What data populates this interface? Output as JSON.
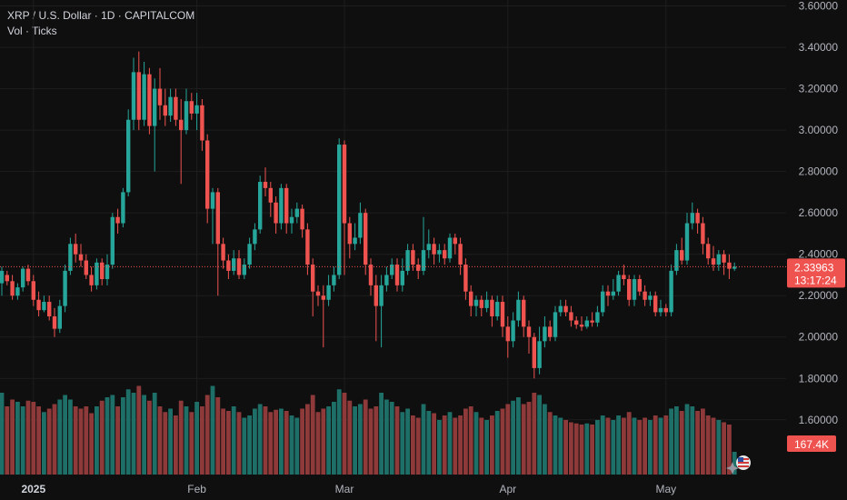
{
  "legend": {
    "title": "XRP / U.S. Dollar · 1D · CAPITALCOM",
    "sub": "Vol · Ticks"
  },
  "colors": {
    "up": "#26a69a",
    "down": "#ef5350",
    "vol_up": "#1f6f69",
    "vol_down": "#8f3a3a",
    "background": "#0f0f0f",
    "grid": "#1e1e1e",
    "price_line": "#ef5350"
  },
  "price_badge": {
    "price": "2.33963",
    "countdown": "13:17:24"
  },
  "volume_badge": "167.4K",
  "chart_data": {
    "type": "candlestick",
    "yticks": [
      "3.60000",
      "3.40000",
      "3.20000",
      "3.00000",
      "2.80000",
      "2.60000",
      "2.40000",
      "2.20000",
      "2.00000",
      "1.80000",
      "1.60000"
    ],
    "xticks": [
      {
        "label": "2025",
        "bar": 6,
        "bold": true
      },
      {
        "label": "Feb",
        "bar": 37,
        "bold": false
      },
      {
        "label": "Mar",
        "bar": 65,
        "bold": false
      },
      {
        "label": "Apr",
        "bar": 96,
        "bold": false
      },
      {
        "label": "May",
        "bar": 126,
        "bold": false
      }
    ],
    "ylim": [
      1.52,
      3.62
    ],
    "current_price": 2.33963,
    "candles": [
      [
        2.26,
        2.32,
        2.2,
        2.34,
        0.72
      ],
      [
        2.3,
        2.27,
        2.25,
        2.32,
        0.6
      ],
      [
        2.27,
        2.2,
        2.18,
        2.3,
        0.66
      ],
      [
        2.2,
        2.24,
        2.18,
        2.26,
        0.64
      ],
      [
        2.24,
        2.33,
        2.22,
        2.34,
        0.6
      ],
      [
        2.33,
        2.27,
        2.25,
        2.35,
        0.65
      ],
      [
        2.27,
        2.18,
        2.15,
        2.3,
        0.64
      ],
      [
        2.18,
        2.13,
        2.1,
        2.22,
        0.6
      ],
      [
        2.13,
        2.17,
        2.12,
        2.2,
        0.55
      ],
      [
        2.17,
        2.1,
        2.08,
        2.2,
        0.58
      ],
      [
        2.1,
        2.04,
        2.0,
        2.14,
        0.62
      ],
      [
        2.04,
        2.15,
        2.02,
        2.18,
        0.66
      ],
      [
        2.15,
        2.32,
        2.12,
        2.35,
        0.7
      ],
      [
        2.32,
        2.45,
        2.3,
        2.48,
        0.66
      ],
      [
        2.45,
        2.4,
        2.36,
        2.5,
        0.6
      ],
      [
        2.4,
        2.37,
        2.34,
        2.45,
        0.58
      ],
      [
        2.37,
        2.3,
        2.28,
        2.4,
        0.6
      ],
      [
        2.3,
        2.25,
        2.22,
        2.34,
        0.54
      ],
      [
        2.25,
        2.36,
        2.23,
        2.38,
        0.6
      ],
      [
        2.36,
        2.28,
        2.25,
        2.38,
        0.65
      ],
      [
        2.28,
        2.35,
        2.25,
        2.4,
        0.68
      ],
      [
        2.35,
        2.58,
        2.33,
        2.6,
        0.7
      ],
      [
        2.58,
        2.55,
        2.5,
        2.62,
        0.6
      ],
      [
        2.55,
        2.7,
        2.53,
        2.72,
        0.68
      ],
      [
        2.7,
        3.05,
        2.68,
        3.1,
        0.75
      ],
      [
        3.05,
        3.28,
        3.0,
        3.35,
        0.72
      ],
      [
        3.28,
        3.05,
        3.0,
        3.38,
        0.78
      ],
      [
        3.05,
        3.27,
        3.02,
        3.33,
        0.7
      ],
      [
        3.27,
        3.02,
        2.98,
        3.3,
        0.65
      ],
      [
        3.02,
        3.2,
        2.8,
        3.25,
        0.72
      ],
      [
        3.2,
        3.12,
        3.05,
        3.3,
        0.6
      ],
      [
        3.12,
        3.07,
        3.02,
        3.2,
        0.55
      ],
      [
        3.07,
        3.16,
        3.04,
        3.2,
        0.58
      ],
      [
        3.16,
        3.05,
        3.02,
        3.2,
        0.52
      ],
      [
        3.05,
        3.0,
        2.74,
        3.15,
        0.65
      ],
      [
        3.0,
        3.14,
        2.98,
        3.2,
        0.6
      ],
      [
        3.14,
        3.08,
        3.05,
        3.18,
        0.55
      ],
      [
        3.08,
        3.12,
        3.0,
        3.18,
        0.64
      ],
      [
        3.12,
        2.95,
        2.9,
        3.15,
        0.6
      ],
      [
        2.95,
        2.62,
        2.55,
        2.98,
        0.7
      ],
      [
        2.62,
        2.7,
        2.45,
        2.72,
        0.78
      ],
      [
        2.7,
        2.45,
        2.2,
        2.72,
        0.68
      ],
      [
        2.45,
        2.37,
        2.33,
        2.48,
        0.58
      ],
      [
        2.37,
        2.32,
        2.28,
        2.4,
        0.56
      ],
      [
        2.32,
        2.38,
        2.3,
        2.42,
        0.6
      ],
      [
        2.38,
        2.3,
        2.28,
        2.42,
        0.55
      ],
      [
        2.3,
        2.35,
        2.28,
        2.38,
        0.5
      ],
      [
        2.35,
        2.45,
        2.33,
        2.48,
        0.52
      ],
      [
        2.45,
        2.52,
        2.42,
        2.55,
        0.58
      ],
      [
        2.52,
        2.75,
        2.5,
        2.78,
        0.62
      ],
      [
        2.75,
        2.72,
        2.68,
        2.82,
        0.6
      ],
      [
        2.72,
        2.65,
        2.58,
        2.75,
        0.55
      ],
      [
        2.65,
        2.55,
        2.5,
        2.68,
        0.57
      ],
      [
        2.55,
        2.72,
        2.52,
        2.74,
        0.58
      ],
      [
        2.72,
        2.55,
        2.5,
        2.74,
        0.56
      ],
      [
        2.55,
        2.58,
        2.5,
        2.62,
        0.52
      ],
      [
        2.58,
        2.62,
        2.55,
        2.65,
        0.5
      ],
      [
        2.62,
        2.52,
        2.48,
        2.64,
        0.58
      ],
      [
        2.52,
        2.35,
        2.3,
        2.55,
        0.62
      ],
      [
        2.35,
        2.22,
        2.1,
        2.38,
        0.7
      ],
      [
        2.22,
        2.2,
        2.15,
        2.25,
        0.55
      ],
      [
        2.2,
        2.18,
        1.95,
        2.25,
        0.58
      ],
      [
        2.18,
        2.25,
        2.15,
        2.3,
        0.6
      ],
      [
        2.25,
        2.3,
        2.22,
        2.34,
        0.64
      ],
      [
        2.3,
        2.93,
        2.28,
        2.96,
        0.75
      ],
      [
        2.93,
        2.55,
        2.3,
        2.95,
        0.72
      ],
      [
        2.55,
        2.45,
        2.38,
        2.58,
        0.65
      ],
      [
        2.45,
        2.48,
        2.42,
        2.55,
        0.6
      ],
      [
        2.48,
        2.6,
        2.45,
        2.65,
        0.62
      ],
      [
        2.6,
        2.35,
        2.3,
        2.62,
        0.66
      ],
      [
        2.35,
        2.25,
        2.2,
        2.38,
        0.58
      ],
      [
        2.25,
        2.15,
        1.98,
        2.3,
        0.6
      ],
      [
        2.15,
        2.25,
        1.95,
        2.3,
        0.72
      ],
      [
        2.25,
        2.3,
        2.22,
        2.34,
        0.66
      ],
      [
        2.3,
        2.35,
        2.28,
        2.38,
        0.64
      ],
      [
        2.35,
        2.25,
        2.22,
        2.38,
        0.6
      ],
      [
        2.25,
        2.32,
        2.22,
        2.38,
        0.55
      ],
      [
        2.32,
        2.42,
        2.3,
        2.45,
        0.58
      ],
      [
        2.42,
        2.35,
        2.32,
        2.45,
        0.52
      ],
      [
        2.35,
        2.32,
        2.28,
        2.38,
        0.5
      ],
      [
        2.32,
        2.42,
        2.3,
        2.58,
        0.62
      ],
      [
        2.42,
        2.45,
        2.38,
        2.52,
        0.56
      ],
      [
        2.45,
        2.4,
        2.35,
        2.48,
        0.54
      ],
      [
        2.4,
        2.42,
        2.36,
        2.45,
        0.48
      ],
      [
        2.42,
        2.38,
        2.35,
        2.45,
        0.52
      ],
      [
        2.38,
        2.48,
        2.36,
        2.5,
        0.55
      ],
      [
        2.48,
        2.45,
        2.4,
        2.5,
        0.5
      ],
      [
        2.45,
        2.35,
        2.3,
        2.48,
        0.52
      ],
      [
        2.35,
        2.22,
        2.18,
        2.38,
        0.58
      ],
      [
        2.22,
        2.15,
        2.1,
        2.25,
        0.6
      ],
      [
        2.15,
        2.18,
        2.1,
        2.2,
        0.55
      ],
      [
        2.18,
        2.14,
        2.1,
        2.2,
        0.5
      ],
      [
        2.14,
        2.18,
        2.12,
        2.22,
        0.48
      ],
      [
        2.18,
        2.1,
        2.05,
        2.2,
        0.52
      ],
      [
        2.1,
        2.17,
        2.08,
        2.2,
        0.56
      ],
      [
        2.17,
        2.05,
        2.0,
        2.2,
        0.58
      ],
      [
        2.05,
        1.98,
        1.9,
        2.1,
        0.62
      ],
      [
        1.98,
        2.08,
        1.95,
        2.12,
        0.65
      ],
      [
        2.08,
        2.18,
        2.05,
        2.22,
        0.68
      ],
      [
        2.18,
        2.05,
        2.0,
        2.2,
        0.62
      ],
      [
        2.05,
        2.0,
        1.92,
        2.08,
        0.64
      ],
      [
        2.0,
        1.85,
        1.8,
        2.02,
        0.72
      ],
      [
        1.85,
        1.98,
        1.82,
        2.05,
        0.7
      ],
      [
        1.98,
        2.05,
        1.95,
        2.1,
        0.62
      ],
      [
        2.05,
        2.0,
        1.98,
        2.08,
        0.55
      ],
      [
        2.0,
        2.12,
        1.98,
        2.15,
        0.52
      ],
      [
        2.12,
        2.15,
        2.1,
        2.18,
        0.5
      ],
      [
        2.15,
        2.12,
        2.1,
        2.18,
        0.48
      ],
      [
        2.12,
        2.08,
        2.05,
        2.15,
        0.46
      ],
      [
        2.08,
        2.06,
        2.04,
        2.1,
        0.45
      ],
      [
        2.06,
        2.05,
        2.03,
        2.1,
        0.44
      ],
      [
        2.05,
        2.08,
        2.04,
        2.1,
        0.45
      ],
      [
        2.08,
        2.07,
        2.05,
        2.12,
        0.44
      ],
      [
        2.07,
        2.12,
        2.05,
        2.15,
        0.48
      ],
      [
        2.12,
        2.22,
        2.1,
        2.25,
        0.52
      ],
      [
        2.22,
        2.2,
        2.15,
        2.25,
        0.5
      ],
      [
        2.2,
        2.22,
        2.18,
        2.28,
        0.48
      ],
      [
        2.22,
        2.3,
        2.2,
        2.32,
        0.52
      ],
      [
        2.3,
        2.28,
        2.25,
        2.35,
        0.5
      ],
      [
        2.28,
        2.18,
        2.15,
        2.3,
        0.55
      ],
      [
        2.18,
        2.28,
        2.15,
        2.3,
        0.5
      ],
      [
        2.28,
        2.22,
        2.2,
        2.3,
        0.48
      ],
      [
        2.22,
        2.18,
        2.15,
        2.25,
        0.5
      ],
      [
        2.18,
        2.2,
        2.15,
        2.22,
        0.48
      ],
      [
        2.2,
        2.12,
        2.1,
        2.22,
        0.52
      ],
      [
        2.12,
        2.14,
        2.1,
        2.18,
        0.5
      ],
      [
        2.14,
        2.12,
        2.1,
        2.16,
        0.52
      ],
      [
        2.12,
        2.32,
        2.1,
        2.35,
        0.58
      ],
      [
        2.32,
        2.42,
        2.3,
        2.45,
        0.6
      ],
      [
        2.42,
        2.37,
        2.35,
        2.48,
        0.56
      ],
      [
        2.37,
        2.55,
        2.35,
        2.6,
        0.62
      ],
      [
        2.55,
        2.6,
        2.52,
        2.65,
        0.6
      ],
      [
        2.6,
        2.55,
        2.5,
        2.62,
        0.56
      ],
      [
        2.55,
        2.45,
        2.4,
        2.58,
        0.58
      ],
      [
        2.45,
        2.38,
        2.35,
        2.48,
        0.52
      ],
      [
        2.38,
        2.35,
        2.32,
        2.44,
        0.5
      ],
      [
        2.35,
        2.4,
        2.32,
        2.42,
        0.48
      ],
      [
        2.4,
        2.36,
        2.3,
        2.42,
        0.46
      ],
      [
        2.36,
        2.33,
        2.28,
        2.4,
        0.44
      ],
      [
        2.33,
        2.34,
        2.32,
        2.36,
        0.2
      ]
    ]
  }
}
